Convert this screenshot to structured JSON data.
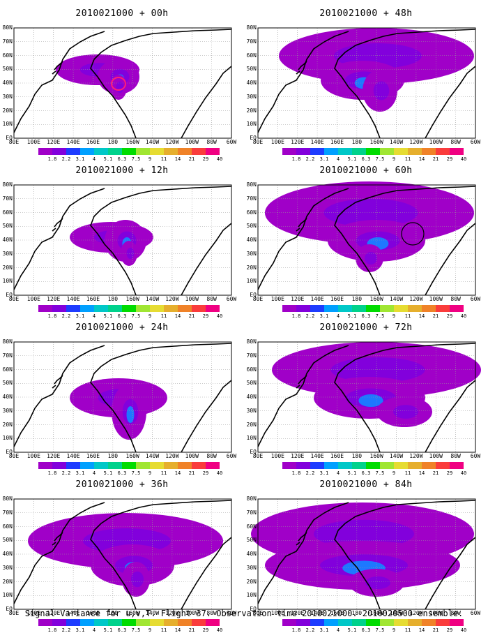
{
  "panels": [
    {
      "title": "2010021000 + 00h"
    },
    {
      "title": "2010021000 + 48h"
    },
    {
      "title": "2010021000 + 12h"
    },
    {
      "title": "2010021000 + 60h"
    },
    {
      "title": "2010021000 + 24h"
    },
    {
      "title": "2010021000 + 72h"
    },
    {
      "title": "2010021000 + 36h"
    },
    {
      "title": "2010021000 + 84h"
    }
  ],
  "lat_labels": [
    "80N",
    "70N",
    "60N",
    "50N",
    "40N",
    "30N",
    "20N",
    "10N",
    "EQ"
  ],
  "lon_labels": [
    "80E",
    "100E",
    "120E",
    "140E",
    "160E",
    "180",
    "160W",
    "140W",
    "120W",
    "100W",
    "80W",
    "60W"
  ],
  "colorbar": {
    "labels": [
      "1.8",
      "2.2",
      "3.1",
      "4",
      "5.1",
      "6.3",
      "7.5",
      "9",
      "11",
      "14",
      "21",
      "29",
      "40"
    ],
    "colors": [
      "#a000c8",
      "#8200dc",
      "#1e3cff",
      "#00a0ff",
      "#00c8c8",
      "#00d28c",
      "#00dc00",
      "#a0e632",
      "#e6dc32",
      "#e6af2d",
      "#f08228",
      "#fa3c3c",
      "#f00082"
    ]
  },
  "footer": "Signal Variance for u,v,T. Flight 37. Observation time 2010021000. 2010020500 ensemble."
}
